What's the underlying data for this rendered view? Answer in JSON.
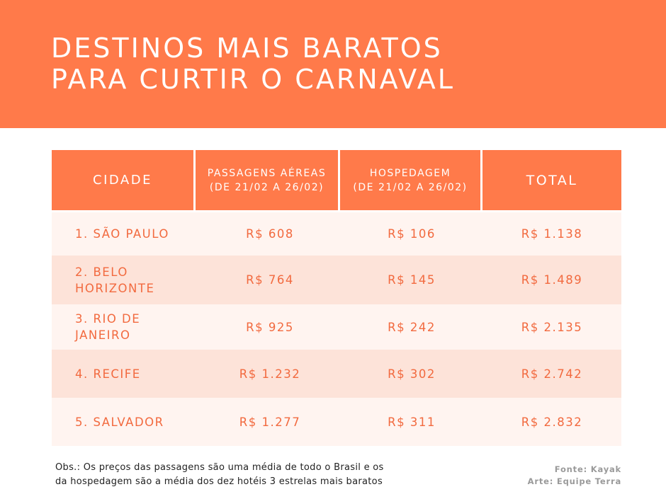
{
  "header": {
    "title_line1": "DESTINOS MAIS BARATOS",
    "title_line2": "PARA CURTIR O CARNAVAL"
  },
  "table": {
    "columns": {
      "city": "CIDADE",
      "air_line1": "PASSAGENS AÉREAS",
      "air_line2": "(DE 21/02 A 26/02)",
      "hotel_line1": "HOSPEDAGEM",
      "hotel_line2": "(DE 21/02 A 26/02)",
      "total": "TOTAL"
    },
    "rows": [
      {
        "city_line1": "1. SÃO PAULO",
        "city_line2": "",
        "air": "R$ 608",
        "hotel": "R$ 106",
        "total": "R$ 1.138"
      },
      {
        "city_line1": "2. BELO",
        "city_line2": "HORIZONTE",
        "air": "R$ 764",
        "hotel": "R$ 145",
        "total": "R$ 1.489"
      },
      {
        "city_line1": "3. RIO DE",
        "city_line2": "JANEIRO",
        "air": "R$ 925",
        "hotel": "R$ 242",
        "total": "R$ 2.135"
      },
      {
        "city_line1": "4. RECIFE",
        "city_line2": "",
        "air": "R$ 1.232",
        "hotel": "R$ 302",
        "total": "R$ 2.742"
      },
      {
        "city_line1": "5. SALVADOR",
        "city_line2": "",
        "air": "R$ 1.277",
        "hotel": "R$ 311",
        "total": "R$ 2.832"
      }
    ]
  },
  "footer": {
    "obs_line1": "Obs.: Os preços das passagens são uma média de todo o Brasil e os",
    "obs_line2": "da hospedagem são a média dos dez hotéis 3 estrelas mais baratos",
    "source": "Fonte: Kayak",
    "art": "Arte: Equipe Terra"
  },
  "colors": {
    "accent": "#ff7a4a",
    "text_orange": "#f26a3f",
    "row_light": "#fff4f0",
    "row_dark": "#fde3d9"
  }
}
